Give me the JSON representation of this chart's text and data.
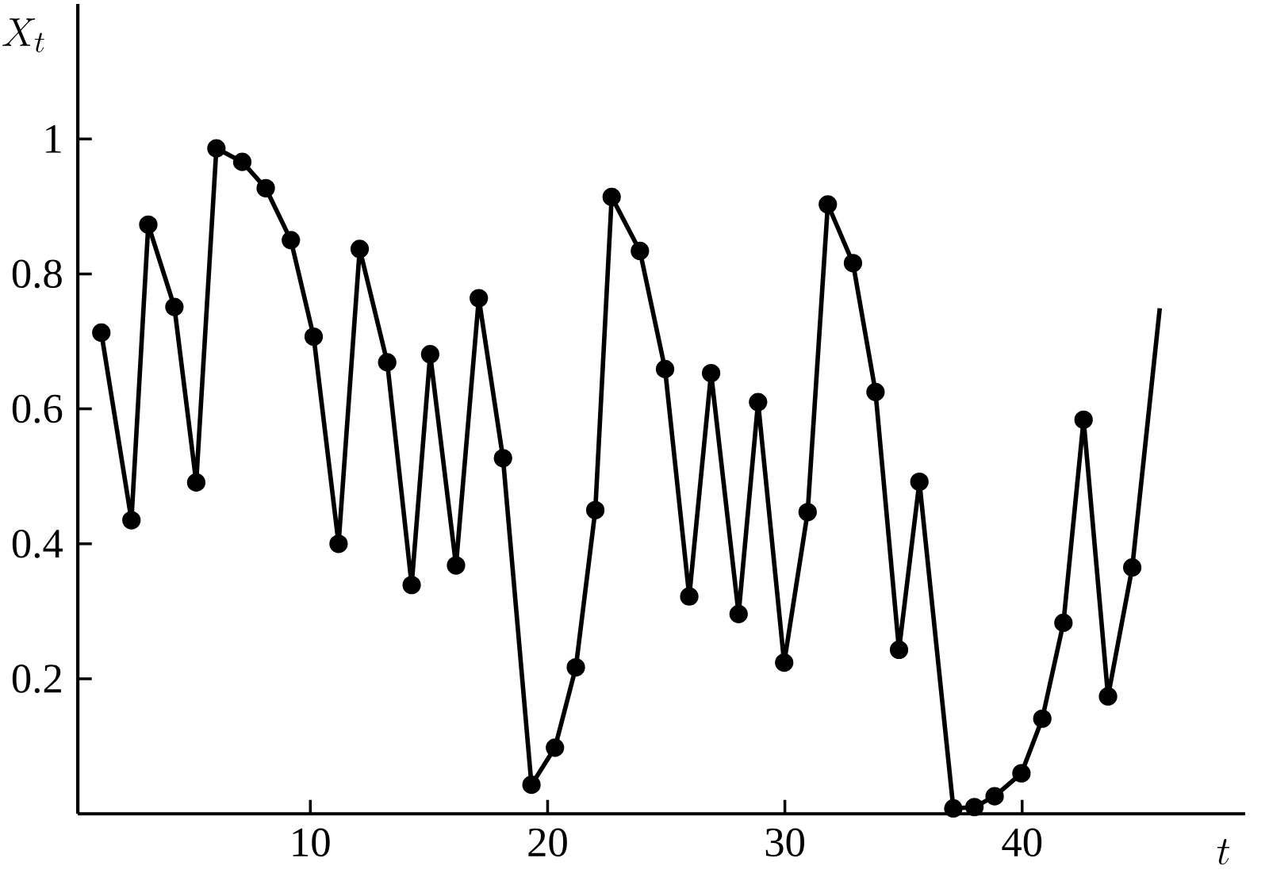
{
  "chart_data": {
    "type": "line",
    "xlabel": "t",
    "ylabel": "X_t",
    "xlim": [
      0.2,
      49.4
    ],
    "ylim": [
      0,
      1.2
    ],
    "xticks": [
      10,
      20,
      30,
      40
    ],
    "yticks": [
      0.2,
      0.4,
      0.6,
      0.8,
      1
    ],
    "series": [
      {
        "marker": "none",
        "color": "#000000",
        "x": [
          1.19,
          2.46,
          3.17,
          4.27,
          5.19,
          6.04,
          7.13,
          8.12,
          9.18,
          10.14,
          11.19,
          12.08,
          13.24,
          14.27,
          15.05,
          16.14,
          17.1,
          18.12,
          19.32,
          20.31,
          21.19,
          22.01,
          22.7,
          23.89,
          24.95,
          25.97,
          26.89,
          28.05,
          28.87,
          29.97,
          30.96,
          31.81,
          32.87,
          33.82,
          34.81,
          35.67,
          37.1,
          37.99,
          38.84,
          39.97,
          40.85,
          41.74,
          42.59,
          43.62,
          44.64,
          45.8
        ],
        "values": [
          0.713,
          0.435,
          0.873,
          0.751,
          0.491,
          0.986,
          0.966,
          0.927,
          0.85,
          0.707,
          0.4,
          0.837,
          0.669,
          0.339,
          0.681,
          0.368,
          0.764,
          0.527,
          0.043,
          0.098,
          0.217,
          0.45,
          0.914,
          0.834,
          0.659,
          0.322,
          0.653,
          0.296,
          0.61,
          0.224,
          0.447,
          0.903,
          0.816,
          0.625,
          0.243,
          0.492,
          0.008,
          0.01,
          0.026,
          0.06,
          0.141,
          0.283,
          0.584,
          0.174,
          0.365,
          0.749
        ]
      },
      {
        "type": "scatter",
        "marker": "circle",
        "color": "#000000",
        "x": [
          1.19,
          2.46,
          3.17,
          4.27,
          5.19,
          6.04,
          7.13,
          8.12,
          9.18,
          10.14,
          11.19,
          12.08,
          13.24,
          14.27,
          15.05,
          16.14,
          17.1,
          18.12,
          19.32,
          20.31,
          21.19,
          22.01,
          22.7,
          23.89,
          24.95,
          25.97,
          26.89,
          28.05,
          28.87,
          29.97,
          30.96,
          31.81,
          32.87,
          33.82,
          34.81,
          35.67,
          37.1,
          37.99,
          38.84,
          39.97,
          40.85,
          41.74,
          42.59,
          43.62,
          44.64
        ],
        "values": [
          0.713,
          0.435,
          0.873,
          0.751,
          0.491,
          0.986,
          0.966,
          0.927,
          0.85,
          0.707,
          0.4,
          0.837,
          0.669,
          0.339,
          0.681,
          0.368,
          0.764,
          0.527,
          0.043,
          0.098,
          0.217,
          0.45,
          0.914,
          0.834,
          0.659,
          0.322,
          0.653,
          0.296,
          0.61,
          0.224,
          0.447,
          0.903,
          0.816,
          0.625,
          0.243,
          0.492,
          0.008,
          0.01,
          0.026,
          0.06,
          0.141,
          0.283,
          0.584,
          0.174,
          0.365
        ]
      }
    ]
  }
}
